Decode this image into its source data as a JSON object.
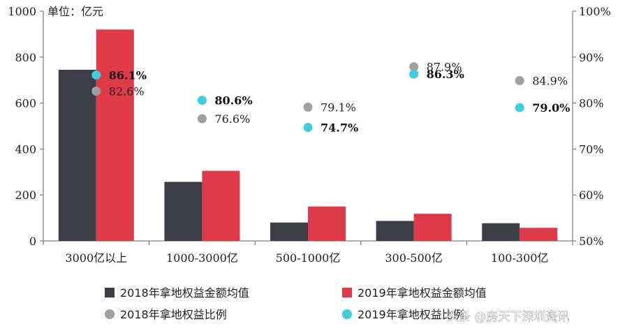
{
  "chart_data": {
    "type": "bar",
    "unit_label": "单位：亿元",
    "categories": [
      "3000亿以上",
      "1000-3000亿",
      "500-1000亿",
      "300-500亿",
      "100-300亿"
    ],
    "series": [
      {
        "name": "2018年拿地权益金额均值",
        "kind": "bar",
        "axis": "left",
        "color": "#3d3d45",
        "values": [
          745,
          257,
          80,
          87,
          77
        ]
      },
      {
        "name": "2019年拿地权益金额均值",
        "kind": "bar",
        "axis": "left",
        "color": "#e03a4a",
        "values": [
          920,
          305,
          150,
          118,
          57
        ]
      },
      {
        "name": "2018年拿地权益比例",
        "kind": "scatter",
        "axis": "right",
        "color": "#a0a0a0",
        "values": [
          82.6,
          76.6,
          79.1,
          87.9,
          84.9
        ],
        "labels": [
          "82.6%",
          "76.6%",
          "79.1%",
          "87.9%",
          "84.9%"
        ]
      },
      {
        "name": "2019年拿地权益比例",
        "kind": "scatter",
        "axis": "right",
        "color": "#3dcfdc",
        "values": [
          86.1,
          80.6,
          74.7,
          86.3,
          79.0
        ],
        "labels": [
          "86.1%",
          "80.6%",
          "74.7%",
          "86.3%",
          "79.0%"
        ]
      }
    ],
    "y_left": {
      "min": 0,
      "max": 1000,
      "ticks": [
        "0",
        "200",
        "400",
        "600",
        "800",
        "1000"
      ]
    },
    "y_right": {
      "min": 50,
      "max": 100,
      "ticks": [
        "50%",
        "60%",
        "70%",
        "80%",
        "90%",
        "100%"
      ]
    },
    "legend_position": "bottom",
    "grid": false
  },
  "watermark": "头条 @房天下深圳资讯"
}
